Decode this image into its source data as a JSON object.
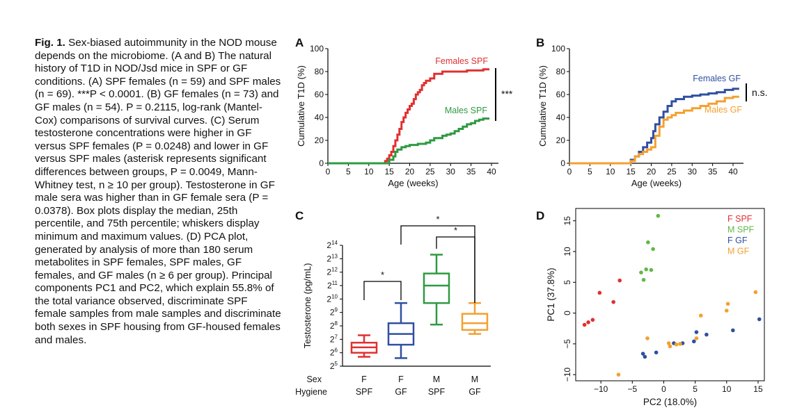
{
  "caption": {
    "fig": "Fig. 1.",
    "heading": "Sex-biased autoimmunity in the NOD mouse depends on the microbiome.",
    "body": "(A and B) The natural history of T1D in NOD/Jsd mice in SPF or GF conditions. (A) SPF females (n = 59) and SPF males (n = 69). ***P < 0.0001. (B) GF females (n = 73) and GF males (n = 54). P = 0.2115, log-rank (Mantel-Cox) comparisons of survival curves. (C) Serum testosterone concentrations were higher in GF versus SPF females (P = 0.0248) and lower in GF versus SPF males (asterisk represents significant differences between groups, P = 0.0049, Mann-Whitney test, n ≥ 10 per group). Testosterone in GF male sera was higher than in GF female sera (P = 0.0378). Box plots display the median, 25th percentile, and 75th percentile; whiskers display minimum and maximum values. (D) PCA plot, generated by analysis of more than 180 serum metabolites in SPF females, SPF males, GF females, and GF males (n ≥ 6 per group). Principal components PC1 and PC2, which explain 55.8% of the total variance observed, discriminate SPF female samples from male samples and discriminate both sexes in SPF housing from GF-housed females and males."
  },
  "chart_data": [
    {
      "panel": "A",
      "type": "line",
      "xlabel": "Age (weeks)",
      "ylabel": "Cumulative T1D (%)",
      "xlim": [
        0,
        40
      ],
      "ylim": [
        0,
        100
      ],
      "xticks": [
        "0",
        "5",
        "10",
        "15",
        "20",
        "25",
        "30",
        "35",
        "40"
      ],
      "yticks": [
        "0",
        "20",
        "40",
        "60",
        "80",
        "100"
      ],
      "significance": "***",
      "series": [
        {
          "name": "Females SPF",
          "color": "#e03030",
          "x": [
            0,
            13.5,
            14,
            14.5,
            15,
            15.5,
            16,
            16.5,
            17,
            17.5,
            18,
            18.5,
            19,
            19.5,
            20,
            20.5,
            21,
            21.5,
            22,
            22.5,
            23,
            23.5,
            24,
            25,
            26,
            27,
            28,
            29,
            30,
            32,
            34,
            36,
            38,
            39.5
          ],
          "y": [
            0,
            0,
            2,
            4,
            7,
            10,
            15,
            20,
            25,
            30,
            36,
            40,
            44,
            47,
            50,
            52,
            56,
            60,
            62,
            64,
            68,
            70,
            72,
            74,
            78,
            78,
            80,
            80,
            80,
            80,
            81,
            81,
            82,
            82
          ]
        },
        {
          "name": "Males SPF",
          "color": "#2e9a40",
          "x": [
            0,
            14,
            15,
            16,
            16.5,
            17,
            18,
            19,
            20,
            21,
            22,
            23,
            24,
            25,
            26,
            27,
            28,
            29,
            30,
            31,
            32,
            33,
            34,
            35,
            36,
            37,
            38,
            39.5
          ],
          "y": [
            0,
            0,
            3,
            6,
            10,
            12,
            14,
            15,
            16,
            16,
            17,
            17,
            18,
            20,
            22,
            22,
            24,
            25,
            26,
            28,
            30,
            32,
            34,
            35,
            37,
            38,
            39,
            39
          ]
        }
      ]
    },
    {
      "panel": "B",
      "type": "line",
      "xlabel": "Age (weeks)",
      "ylabel": "Cumulative T1D (%)",
      "xlim": [
        0,
        40
      ],
      "ylim": [
        0,
        100
      ],
      "xticks": [
        "0",
        "5",
        "10",
        "15",
        "20",
        "25",
        "30",
        "35",
        "40"
      ],
      "yticks": [
        "0",
        "20",
        "40",
        "60",
        "80",
        "100"
      ],
      "significance": "n.s.",
      "series": [
        {
          "name": "Females GF",
          "color": "#2f4fa0",
          "x": [
            0,
            14,
            15,
            16,
            17,
            18,
            19,
            20,
            20.5,
            21,
            22,
            23,
            24,
            25,
            26,
            28,
            30,
            32,
            34,
            36,
            38,
            40,
            41.5
          ],
          "y": [
            0,
            0,
            3,
            6,
            10,
            14,
            18,
            22,
            28,
            34,
            40,
            45,
            50,
            54,
            56,
            58,
            59,
            60,
            61,
            62,
            64,
            65,
            65
          ]
        },
        {
          "name": "Males GF",
          "color": "#f3a030",
          "x": [
            0,
            14,
            15,
            16,
            17,
            18,
            19,
            20,
            21,
            22,
            23,
            24,
            25,
            26,
            28,
            30,
            32,
            34,
            36,
            38,
            40,
            41.5
          ],
          "y": [
            0,
            0,
            2,
            6,
            8,
            10,
            12,
            14,
            24,
            32,
            38,
            40,
            42,
            44,
            46,
            48,
            50,
            52,
            54,
            57,
            58,
            58
          ]
        }
      ]
    },
    {
      "panel": "C",
      "type": "box",
      "ylabel": "Testosterone (pg/mL)",
      "ylim_log2": [
        5,
        14
      ],
      "ytick_base": "2",
      "yticks_exp": [
        "5",
        "6",
        "7",
        "8",
        "9",
        "10",
        "11",
        "12",
        "13",
        "14"
      ],
      "row_labels": [
        "Sex",
        "Hygiene"
      ],
      "groups": [
        {
          "sex": "F",
          "hygiene": "SPF",
          "color": "#e03030",
          "min": 5.7,
          "q1": 6.0,
          "median": 6.4,
          "q3": 6.75,
          "max": 7.3
        },
        {
          "sex": "F",
          "hygiene": "GF",
          "color": "#2f4fa0",
          "min": 5.6,
          "q1": 6.6,
          "median": 7.4,
          "q3": 8.2,
          "max": 9.7
        },
        {
          "sex": "M",
          "hygiene": "SPF",
          "color": "#2e9a40",
          "min": 8.1,
          "q1": 9.7,
          "median": 11.0,
          "q3": 11.9,
          "max": 13.3
        },
        {
          "sex": "M",
          "hygiene": "GF",
          "color": "#f3a030",
          "min": 7.4,
          "q1": 7.7,
          "median": 8.2,
          "q3": 8.9,
          "max": 9.7
        }
      ],
      "significance": [
        "*",
        "*",
        "*"
      ]
    },
    {
      "panel": "D",
      "type": "scatter",
      "xlabel": "PC2 (18.0%)",
      "ylabel": "PC1 (37.8%)",
      "xlim": [
        -14,
        16
      ],
      "ylim": [
        -11,
        17
      ],
      "xticks": [
        "-10",
        "-5",
        "0",
        "5",
        "10",
        "15"
      ],
      "yticks": [
        "-10",
        "-5",
        "0",
        "5",
        "10",
        "15"
      ],
      "series": [
        {
          "name": "F SPF",
          "color": "#e03030",
          "x": [
            -12.6,
            -12.0,
            -11.3,
            -10.2,
            -8.0,
            -7.0
          ],
          "y": [
            -1.9,
            -1.5,
            -1.1,
            3.3,
            1.8,
            5.3
          ]
        },
        {
          "name": "M SPF",
          "color": "#60b848",
          "x": [
            -3.6,
            -3.2,
            -2.8,
            -2.5,
            -2.0,
            -1.7,
            -0.9
          ],
          "y": [
            6.6,
            5.4,
            7.1,
            11.5,
            7.0,
            10.4,
            15.8
          ]
        },
        {
          "name": "F GF",
          "color": "#2f4fa0",
          "x": [
            -3.3,
            -3.0,
            -1.2,
            1.6,
            3.0,
            4.8,
            5.2,
            6.8,
            11.0,
            15.2
          ],
          "y": [
            -6.6,
            -7.1,
            -6.4,
            -4.9,
            -4.9,
            -4.6,
            -3.1,
            -3.5,
            -2.8,
            -1.0
          ]
        },
        {
          "name": "M GF",
          "color": "#f3a030",
          "x": [
            -7.2,
            -2.6,
            0.8,
            1.0,
            2.0,
            2.6,
            5.2,
            5.9,
            10.0,
            10.2,
            14.6
          ],
          "y": [
            -10.0,
            -4.1,
            -4.9,
            -5.4,
            -5.1,
            -5.0,
            -4.1,
            -0.4,
            0.4,
            1.5,
            3.4
          ]
        }
      ]
    }
  ]
}
